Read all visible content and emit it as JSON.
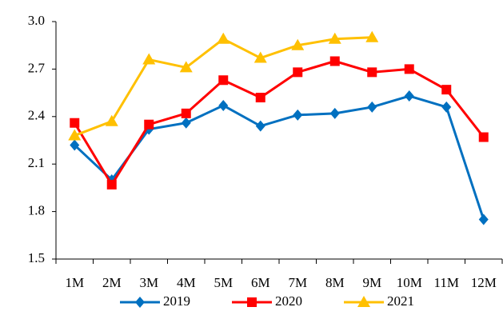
{
  "chart_data": {
    "type": "line",
    "categories": [
      "1M",
      "2M",
      "3M",
      "4M",
      "5M",
      "6M",
      "7M",
      "8M",
      "9M",
      "10M",
      "11M",
      "12M"
    ],
    "series": [
      {
        "name": "2019",
        "color": "#0070c0",
        "marker": "diamond",
        "values": [
          2.22,
          2.0,
          2.32,
          2.36,
          2.47,
          2.34,
          2.41,
          2.42,
          2.46,
          2.53,
          2.46,
          1.75
        ]
      },
      {
        "name": "2020",
        "color": "#ff0000",
        "marker": "square",
        "values": [
          2.36,
          1.97,
          2.35,
          2.42,
          2.63,
          2.52,
          2.68,
          2.75,
          2.68,
          2.7,
          2.57,
          2.27
        ]
      },
      {
        "name": "2021",
        "color": "#ffc000",
        "marker": "triangle",
        "values": [
          2.28,
          2.37,
          2.76,
          2.71,
          2.89,
          2.77,
          2.85,
          2.89,
          2.9,
          null,
          null,
          null
        ]
      }
    ],
    "ylim": [
      1.5,
      3.0
    ],
    "yticks": [
      1.5,
      1.8,
      2.1,
      2.4,
      2.7,
      {
        "value": 3.0,
        "label": "3.0"
      }
    ],
    "grid": false,
    "legend": "bottom"
  }
}
